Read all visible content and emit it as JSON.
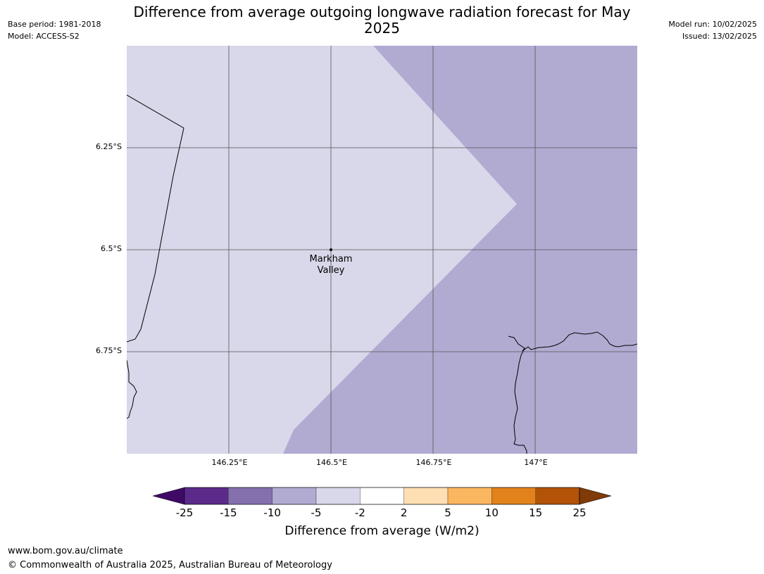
{
  "title": "Difference from average outgoing longwave radiation forecast for May 2025",
  "meta": {
    "base_period": "Base period: 1981-2018",
    "model": "Model: ACCESS-S2",
    "model_run": "Model run: 10/02/2025",
    "issued": "Issued: 13/02/2025"
  },
  "map": {
    "lat_ticks": [
      "6.25°S",
      "6.5°S",
      "6.75°S"
    ],
    "lon_ticks": [
      "146.25°E",
      "146.5°E",
      "146.75°E",
      "147°E"
    ],
    "place": {
      "name_line1": "Markham",
      "name_line2": "Valley"
    },
    "colors": {
      "light_region": "#d8d8ea",
      "mid_region": "#b1abd2",
      "grid": "#555555",
      "coast": "#000000"
    }
  },
  "colorbar": {
    "ticks": [
      "-25",
      "-15",
      "-10",
      "-5",
      "-2",
      "2",
      "5",
      "10",
      "15",
      "25"
    ],
    "colors": [
      "#3f0a67",
      "#5b2a8a",
      "#8370ad",
      "#b1abd2",
      "#d8d8ea",
      "#ffffff",
      "#fedfb3",
      "#fbb660",
      "#e1821a",
      "#b25308",
      "#7f3b08"
    ],
    "label": "Difference from average (W/m2)"
  },
  "footer": {
    "url": "www.bom.gov.au/climate",
    "copyright": "© Commonwealth of Australia 2025, Australian Bureau of Meteorology"
  }
}
